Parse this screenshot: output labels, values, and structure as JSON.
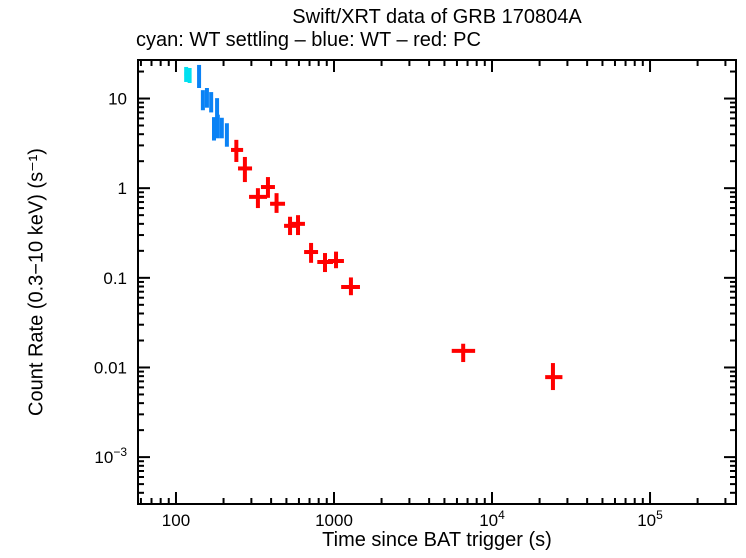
{
  "chart_data": {
    "type": "scatter",
    "title": "Swift/XRT data of GRB 170804A",
    "subtitle": "cyan: WT settling – blue: WT – red: PC",
    "xlabel": "Time since BAT trigger (s)",
    "ylabel": "Count Rate (0.3−10 keV) (s⁻¹)",
    "xscale": "log",
    "yscale": "log",
    "xlim": [
      57.5,
      350000
    ],
    "ylim": [
      0.0003,
      26.9
    ],
    "grid": false,
    "legend_position": "subtitle-line",
    "frame_color": "#000000",
    "background_color": "#ffffff",
    "x_major_ticks": [
      {
        "value": 100,
        "label": "100"
      },
      {
        "value": 1000,
        "label": "1000"
      },
      {
        "value": 10000,
        "label": "10",
        "sup": "4"
      },
      {
        "value": 100000,
        "label": "10",
        "sup": "5"
      }
    ],
    "y_major_ticks": [
      {
        "value": 10,
        "label": "10"
      },
      {
        "value": 1,
        "label": "1"
      },
      {
        "value": 0.1,
        "label": "0.1"
      },
      {
        "value": 0.01,
        "label": "0.01"
      },
      {
        "value": 0.001,
        "label": "10",
        "sup": "−3"
      }
    ],
    "x_minor_ticks": [
      60,
      70,
      80,
      90,
      200,
      300,
      400,
      500,
      600,
      700,
      800,
      900,
      2000,
      3000,
      4000,
      5000,
      6000,
      7000,
      8000,
      9000,
      20000,
      30000,
      40000,
      50000,
      60000,
      70000,
      80000,
      90000,
      200000,
      300000
    ],
    "y_minor_ticks": [
      0.0004,
      0.0005,
      0.0006,
      0.0007,
      0.0008,
      0.0009,
      0.002,
      0.003,
      0.004,
      0.005,
      0.006,
      0.007,
      0.008,
      0.009,
      0.02,
      0.03,
      0.04,
      0.05,
      0.06,
      0.07,
      0.08,
      0.09,
      0.2,
      0.3,
      0.4,
      0.5,
      0.6,
      0.7,
      0.8,
      0.9,
      2,
      3,
      4,
      5,
      6,
      7,
      8,
      9,
      20
    ],
    "series": [
      {
        "name": "WT settling",
        "color": "#00e0f0",
        "marker": "error-bar-cross",
        "points": [
          {
            "t": 116,
            "t_lo": 113,
            "t_hi": 119,
            "rate": 18.7,
            "rate_lo": 15.3,
            "rate_hi": 22.5
          },
          {
            "t": 122,
            "t_lo": 119,
            "t_hi": 125,
            "rate": 17.8,
            "rate_lo": 14.9,
            "rate_hi": 21.9
          }
        ]
      },
      {
        "name": "WT",
        "color": "#0a82f5",
        "marker": "error-bar-cross",
        "points": [
          {
            "t": 140,
            "t_lo": 137,
            "t_hi": 143,
            "rate": 17.8,
            "rate_lo": 13.1,
            "rate_hi": 23.7
          },
          {
            "t": 148,
            "t_lo": 145,
            "t_hi": 151,
            "rate": 9.6,
            "rate_lo": 7.4,
            "rate_hi": 12.4
          },
          {
            "t": 157,
            "t_lo": 154,
            "t_hi": 160,
            "rate": 10.1,
            "rate_lo": 7.9,
            "rate_hi": 13.1
          },
          {
            "t": 167,
            "t_lo": 164,
            "t_hi": 170,
            "rate": 9.1,
            "rate_lo": 7.0,
            "rate_hi": 11.8
          },
          {
            "t": 174,
            "t_lo": 170,
            "t_hi": 178,
            "rate": 4.7,
            "rate_lo": 3.4,
            "rate_hi": 6.2
          },
          {
            "t": 182,
            "t_lo": 178,
            "t_hi": 186,
            "rate": 7.8,
            "rate_lo": 5.7,
            "rate_hi": 10.1
          },
          {
            "t": 184,
            "t_lo": 180,
            "t_hi": 188,
            "rate": 4.9,
            "rate_lo": 3.6,
            "rate_hi": 6.6
          },
          {
            "t": 195,
            "t_lo": 191,
            "t_hi": 199,
            "rate": 4.6,
            "rate_lo": 3.6,
            "rate_hi": 6.1
          },
          {
            "t": 210,
            "t_lo": 205,
            "t_hi": 215,
            "rate": 3.8,
            "rate_lo": 2.9,
            "rate_hi": 5.3
          }
        ]
      },
      {
        "name": "PC",
        "color": "#ff0000",
        "marker": "error-bar-cross",
        "points": [
          {
            "t": 241,
            "t_lo": 223,
            "t_hi": 266,
            "rate": 2.67,
            "rate_lo": 1.96,
            "rate_hi": 3.46
          },
          {
            "t": 273,
            "t_lo": 247,
            "t_hi": 303,
            "rate": 1.66,
            "rate_lo": 1.17,
            "rate_hi": 2.23
          },
          {
            "t": 330,
            "t_lo": 290,
            "t_hi": 377,
            "rate": 0.8,
            "rate_lo": 0.6,
            "rate_hi": 1.0
          },
          {
            "t": 382,
            "t_lo": 345,
            "t_hi": 423,
            "rate": 1.03,
            "rate_lo": 0.78,
            "rate_hi": 1.33
          },
          {
            "t": 433,
            "t_lo": 394,
            "t_hi": 490,
            "rate": 0.67,
            "rate_lo": 0.53,
            "rate_hi": 0.88
          },
          {
            "t": 527,
            "t_lo": 483,
            "t_hi": 577,
            "rate": 0.38,
            "rate_lo": 0.3,
            "rate_hi": 0.48
          },
          {
            "t": 592,
            "t_lo": 535,
            "t_hi": 655,
            "rate": 0.4,
            "rate_lo": 0.3,
            "rate_hi": 0.5
          },
          {
            "t": 716,
            "t_lo": 647,
            "t_hi": 793,
            "rate": 0.194,
            "rate_lo": 0.147,
            "rate_hi": 0.245
          },
          {
            "t": 877,
            "t_lo": 784,
            "t_hi": 987,
            "rate": 0.15,
            "rate_lo": 0.116,
            "rate_hi": 0.189
          },
          {
            "t": 1030,
            "t_lo": 916,
            "t_hi": 1156,
            "rate": 0.154,
            "rate_lo": 0.128,
            "rate_hi": 0.196
          },
          {
            "t": 1280,
            "t_lo": 1110,
            "t_hi": 1460,
            "rate": 0.079,
            "rate_lo": 0.064,
            "rate_hi": 0.101
          },
          {
            "t": 6570,
            "t_lo": 5560,
            "t_hi": 7820,
            "rate": 0.0153,
            "rate_lo": 0.0115,
            "rate_hi": 0.0184
          },
          {
            "t": 24300,
            "t_lo": 21700,
            "t_hi": 27900,
            "rate": 0.0078,
            "rate_lo": 0.0056,
            "rate_hi": 0.0112
          }
        ]
      }
    ]
  }
}
